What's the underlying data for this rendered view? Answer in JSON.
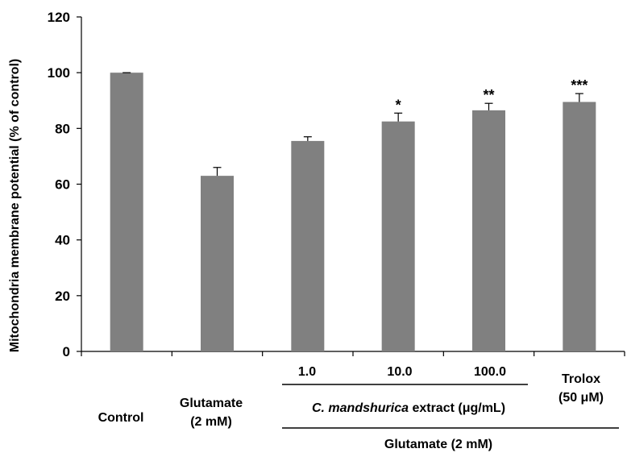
{
  "chart_data": {
    "type": "bar",
    "ylabel": "Mitochondria membrane potential (% of control)",
    "ylim": [
      0,
      120
    ],
    "yticks": [
      0,
      20,
      40,
      60,
      80,
      100,
      120
    ],
    "bar_color": "#808080",
    "grid": false,
    "bars": [
      {
        "id": "control",
        "value": 100.0,
        "error": 0.0,
        "sig": ""
      },
      {
        "id": "glutamate",
        "value": 63.0,
        "error": 3.0,
        "sig": ""
      },
      {
        "id": "ext-1",
        "value": 75.5,
        "error": 1.5,
        "sig": ""
      },
      {
        "id": "ext-10",
        "value": 82.5,
        "error": 3.0,
        "sig": "*"
      },
      {
        "id": "ext-100",
        "value": 86.5,
        "error": 2.5,
        "sig": "**"
      },
      {
        "id": "trolox",
        "value": 89.5,
        "error": 3.0,
        "sig": "***"
      }
    ],
    "labels": {
      "control": "Control",
      "glutamate_line1": "Glutamate",
      "glutamate_line2": "(2 mM)",
      "dose_1": "1.0",
      "dose_10": "10.0",
      "dose_100": "100.0",
      "trolox_line1": "Trolox",
      "trolox_line2": "(50 μM)",
      "extract_species": "C. mandshurica",
      "extract_rest": " extract (μg/mL)",
      "group_glutamate": "Glutamate (2 mM)"
    }
  }
}
